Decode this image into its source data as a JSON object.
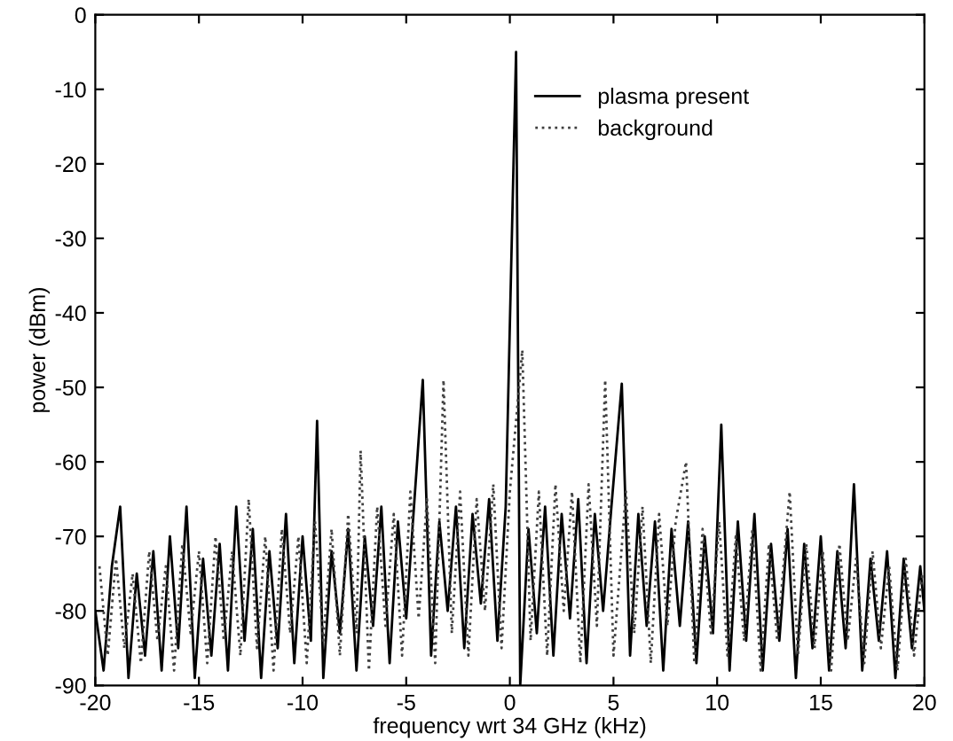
{
  "chart_data": {
    "type": "line",
    "xlabel": "frequency wrt 34 GHz (kHz)",
    "ylabel": "power (dBm)",
    "xlim": [
      -20,
      20
    ],
    "ylim": [
      -90,
      0
    ],
    "xticks": [
      -20,
      -15,
      -10,
      -5,
      0,
      5,
      10,
      15,
      20
    ],
    "yticks": [
      -90,
      -80,
      -70,
      -60,
      -50,
      -40,
      -30,
      -20,
      -10,
      0
    ],
    "grid": false,
    "legend": "top right",
    "marker": "none",
    "series": [
      {
        "name": "plasma present",
        "color": "#000000",
        "line_style": "solid",
        "x": [
          -20,
          -19.6,
          -19.2,
          -18.8,
          -18.4,
          -18,
          -17.6,
          -17.2,
          -16.8,
          -16.4,
          -16,
          -15.6,
          -15.2,
          -14.8,
          -14.4,
          -14,
          -13.6,
          -13.2,
          -12.8,
          -12.4,
          -12,
          -11.6,
          -11.2,
          -10.8,
          -10.4,
          -10,
          -9.6,
          -9.3,
          -9,
          -8.6,
          -8.2,
          -7.8,
          -7.4,
          -7,
          -6.6,
          -6.2,
          -5.8,
          -5.4,
          -5,
          -4.6,
          -4.2,
          -3.8,
          -3.4,
          -3,
          -2.6,
          -2.2,
          -1.8,
          -1.4,
          -1,
          -0.6,
          -0.2,
          0.3,
          0.5,
          0.9,
          1.3,
          1.7,
          2.1,
          2.5,
          2.9,
          3.3,
          3.7,
          4.1,
          4.5,
          4.9,
          5.4,
          5.8,
          6.2,
          6.6,
          7,
          7.4,
          7.8,
          8.2,
          8.6,
          9,
          9.4,
          9.8,
          10.2,
          10.6,
          11,
          11.4,
          11.8,
          12.2,
          12.6,
          13,
          13.4,
          13.8,
          14.2,
          14.6,
          15,
          15.4,
          15.8,
          16.2,
          16.6,
          17,
          17.4,
          17.8,
          18.2,
          18.6,
          19,
          19.4,
          19.8,
          20
        ],
        "values": [
          -80,
          -88,
          -74,
          -66,
          -89,
          -75,
          -86,
          -72,
          -88,
          -70,
          -85,
          -66,
          -89,
          -73,
          -86,
          -71,
          -88,
          -66,
          -84,
          -69,
          -89,
          -72,
          -85,
          -67,
          -87,
          -70,
          -84,
          -54.5,
          -89,
          -72,
          -83,
          -69,
          -88,
          -70,
          -82,
          -66,
          -87,
          -68,
          -81,
          -65,
          -49,
          -86,
          -68,
          -80,
          -66,
          -85,
          -67,
          -79,
          -65,
          -84,
          -66,
          -5,
          -90,
          -69,
          -83,
          -66,
          -86,
          -67,
          -81,
          -65,
          -87,
          -67,
          -80,
          -66,
          -49.5,
          -86,
          -67,
          -82,
          -68,
          -88,
          -69,
          -82,
          -68,
          -87,
          -70,
          -83,
          -55,
          -88,
          -68,
          -84,
          -67,
          -88,
          -71,
          -84,
          -69,
          -89,
          -71,
          -85,
          -70,
          -88,
          -72,
          -85,
          -63,
          -88,
          -73,
          -84,
          -72,
          -89,
          -73,
          -85,
          -74,
          -80
        ]
      },
      {
        "name": "background",
        "color": "#404040",
        "line_style": "dotted",
        "x": [
          -19.8,
          -19.4,
          -19,
          -18.6,
          -18.2,
          -17.8,
          -17.4,
          -17,
          -16.6,
          -16.2,
          -15.8,
          -15.4,
          -15,
          -14.6,
          -14.2,
          -13.8,
          -13.4,
          -13,
          -12.6,
          -12.2,
          -11.8,
          -11.4,
          -11,
          -10.6,
          -10.2,
          -9.8,
          -9.4,
          -9,
          -8.6,
          -8.2,
          -7.8,
          -7.4,
          -7.2,
          -6.8,
          -6.4,
          -6,
          -5.6,
          -5.2,
          -4.8,
          -4.4,
          -4,
          -3.6,
          -3.2,
          -2.8,
          -2.4,
          -2,
          -1.6,
          -1.2,
          -0.8,
          -0.4,
          0,
          0.6,
          1,
          1.4,
          1.8,
          2.2,
          2.6,
          3,
          3.4,
          3.8,
          4.2,
          4.6,
          5,
          5.6,
          6,
          6.4,
          6.8,
          7.2,
          7.6,
          8,
          8.5,
          8.9,
          9.3,
          9.7,
          10.1,
          10.5,
          10.9,
          11.3,
          11.7,
          12.1,
          12.5,
          12.9,
          13.5,
          13.9,
          14.3,
          14.7,
          15.1,
          15.5,
          15.9,
          16.3,
          16.7,
          17.1,
          17.5,
          17.9,
          18.3,
          18.7,
          19.1,
          19.5,
          19.9
        ],
        "values": [
          -74,
          -86,
          -73,
          -85,
          -75,
          -87,
          -72,
          -84,
          -74,
          -88,
          -71,
          -83,
          -72,
          -87,
          -70,
          -84,
          -72,
          -86,
          -65,
          -85,
          -70,
          -88,
          -69,
          -83,
          -70,
          -87,
          -68,
          -84,
          -69,
          -86,
          -67,
          -83,
          -58.5,
          -88,
          -66,
          -82,
          -67,
          -86,
          -64,
          -81,
          -65,
          -87,
          -49,
          -83,
          -64,
          -86,
          -65,
          -80,
          -63,
          -85,
          -64,
          -45,
          -84,
          -64,
          -86,
          -63,
          -80,
          -64,
          -87,
          -63,
          -82,
          -49,
          -86,
          -64,
          -83,
          -66,
          -87,
          -67,
          -82,
          -68,
          -60,
          -87,
          -69,
          -83,
          -68,
          -86,
          -70,
          -84,
          -69,
          -88,
          -71,
          -84,
          -64,
          -86,
          -71,
          -85,
          -72,
          -88,
          -71,
          -84,
          -73,
          -87,
          -72,
          -85,
          -74,
          -88,
          -73,
          -86,
          -75
        ]
      }
    ]
  }
}
